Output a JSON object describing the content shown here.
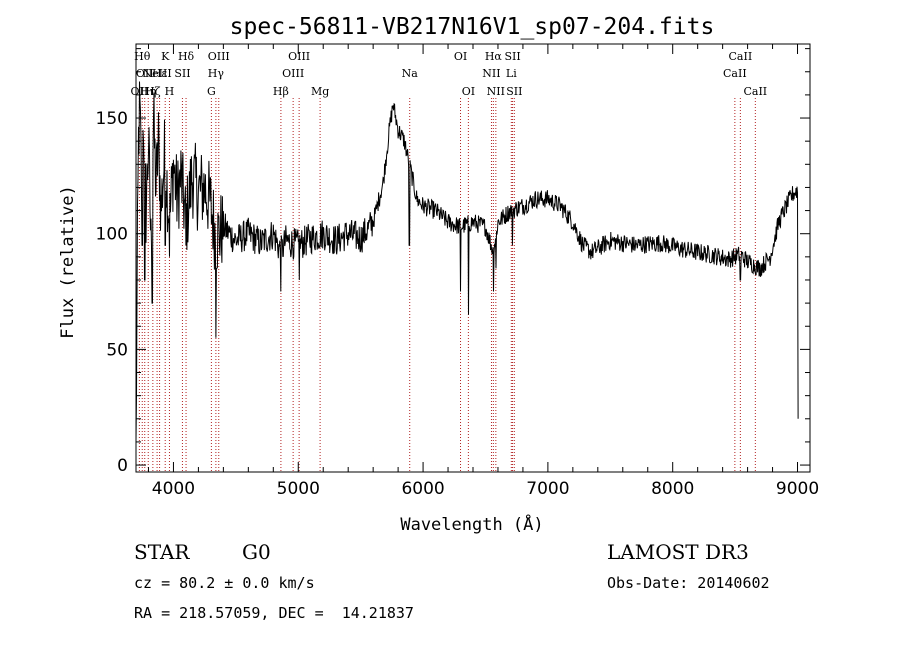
{
  "chart_data": {
    "type": "line",
    "title": "spec-56811-VB217N16V1_sp07-204.fits",
    "xlabel": "Wavelength (Å)",
    "ylabel": "Flux (relative)",
    "xlim": [
      3700,
      9100
    ],
    "ylim": [
      -3,
      182
    ],
    "xticks": [
      4000,
      5000,
      6000,
      7000,
      8000,
      9000
    ],
    "yticks": [
      0,
      50,
      100,
      150
    ],
    "anchors": [
      [
        3700,
        5
      ],
      [
        3705,
        45
      ],
      [
        3712,
        95
      ],
      [
        3720,
        140
      ],
      [
        3730,
        155
      ],
      [
        3745,
        120
      ],
      [
        3760,
        150
      ],
      [
        3780,
        110
      ],
      [
        3800,
        140
      ],
      [
        3820,
        95
      ],
      [
        3840,
        150
      ],
      [
        3860,
        120
      ],
      [
        3880,
        140
      ],
      [
        3900,
        110
      ],
      [
        3930,
        135
      ],
      [
        3970,
        105
      ],
      [
        4000,
        130
      ],
      [
        4030,
        115
      ],
      [
        4060,
        125
      ],
      [
        4101,
        105
      ],
      [
        4150,
        125
      ],
      [
        4200,
        118
      ],
      [
        4250,
        120
      ],
      [
        4300,
        112
      ],
      [
        4340,
        98
      ],
      [
        4400,
        103
      ],
      [
        4500,
        97
      ],
      [
        4600,
        100
      ],
      [
        4700,
        96
      ],
      [
        4800,
        100
      ],
      [
        4861,
        92
      ],
      [
        4900,
        97
      ],
      [
        5000,
        95
      ],
      [
        5100,
        98
      ],
      [
        5200,
        100
      ],
      [
        5300,
        97
      ],
      [
        5400,
        100
      ],
      [
        5500,
        98
      ],
      [
        5600,
        105
      ],
      [
        5680,
        122
      ],
      [
        5730,
        145
      ],
      [
        5760,
        156
      ],
      [
        5800,
        145
      ],
      [
        5850,
        140
      ],
      [
        5890,
        130
      ],
      [
        5950,
        115
      ],
      [
        6000,
        112
      ],
      [
        6100,
        110
      ],
      [
        6200,
        105
      ],
      [
        6300,
        103
      ],
      [
        6400,
        105
      ],
      [
        6500,
        103
      ],
      [
        6563,
        92
      ],
      [
        6600,
        105
      ],
      [
        6700,
        110
      ],
      [
        6800,
        112
      ],
      [
        6900,
        115
      ],
      [
        7000,
        115
      ],
      [
        7100,
        112
      ],
      [
        7200,
        105
      ],
      [
        7280,
        95
      ],
      [
        7350,
        92
      ],
      [
        7500,
        97
      ],
      [
        7700,
        95
      ],
      [
        7900,
        96
      ],
      [
        8100,
        93
      ],
      [
        8300,
        91
      ],
      [
        8450,
        89
      ],
      [
        8540,
        91
      ],
      [
        8600,
        88
      ],
      [
        8700,
        85
      ],
      [
        8780,
        90
      ],
      [
        8850,
        105
      ],
      [
        8920,
        113
      ],
      [
        8960,
        117
      ],
      [
        9000,
        119
      ]
    ],
    "absorption_dips": [
      [
        3750,
        95
      ],
      [
        3770,
        80
      ],
      [
        3830,
        70
      ],
      [
        3934,
        95
      ],
      [
        3968,
        90
      ],
      [
        4101,
        95
      ],
      [
        4340,
        55
      ],
      [
        4350,
        90
      ],
      [
        4861,
        75
      ],
      [
        5007,
        80
      ],
      [
        5890,
        95
      ],
      [
        6300,
        75
      ],
      [
        6365,
        65
      ],
      [
        6563,
        75
      ],
      [
        6583,
        85
      ],
      [
        6717,
        95
      ],
      [
        8542,
        80
      ],
      [
        8662,
        85
      ]
    ],
    "final_drop": [
      9005,
      20
    ],
    "spectral_lines": [
      {
        "wl": 3727,
        "label": "OII",
        "row": 3
      },
      {
        "wl": 3750,
        "label": "Hθ",
        "row": 1
      },
      {
        "wl": 3770,
        "label": "OII",
        "row": 2
      },
      {
        "wl": 3798,
        "label": "Hη",
        "row": 3
      },
      {
        "wl": 3835,
        "label": "Hζ",
        "row": 3
      },
      {
        "wl": 3869,
        "label": "NeIII",
        "row": 2
      },
      {
        "wl": 3889,
        "label": "Hε",
        "row": 2
      },
      {
        "wl": 3934,
        "label": "K",
        "row": 1
      },
      {
        "wl": 3968,
        "label": "H",
        "row": 3
      },
      {
        "wl": 4072,
        "label": "SII",
        "row": 2
      },
      {
        "wl": 4101,
        "label": "Hδ",
        "row": 1
      },
      {
        "wl": 4304,
        "label": "G",
        "row": 3
      },
      {
        "wl": 4340,
        "label": "Hγ",
        "row": 2
      },
      {
        "wl": 4363,
        "label": "OIII",
        "row": 1
      },
      {
        "wl": 4861,
        "label": "Hβ",
        "row": 3
      },
      {
        "wl": 4959,
        "label": "OIII",
        "row": 2
      },
      {
        "wl": 5007,
        "label": "OIII",
        "row": 1
      },
      {
        "wl": 5175,
        "label": "Mg",
        "row": 3
      },
      {
        "wl": 5893,
        "label": "Na",
        "row": 2
      },
      {
        "wl": 6300,
        "label": "OI",
        "row": 1
      },
      {
        "wl": 6363,
        "label": "OI",
        "row": 3
      },
      {
        "wl": 6548,
        "label": "NII",
        "row": 2
      },
      {
        "wl": 6563,
        "label": "Hα",
        "row": 1
      },
      {
        "wl": 6583,
        "label": "NII",
        "row": 3
      },
      {
        "wl": 6707,
        "label": "Li",
        "row": 2
      },
      {
        "wl": 6717,
        "label": "SII",
        "row": 1
      },
      {
        "wl": 6731,
        "label": "SII",
        "row": 3
      },
      {
        "wl": 8498,
        "label": "CaII",
        "row": 2
      },
      {
        "wl": 8542,
        "label": "CaII",
        "row": 1
      },
      {
        "wl": 8662,
        "label": "CaII",
        "row": 3
      }
    ]
  },
  "info": {
    "class": "STAR",
    "subclass": "G0",
    "survey": "LAMOST DR3",
    "cz": "cz = 80.2 ± 0.0 km/s",
    "obs_date": "Obs-Date: 20140602",
    "coords": "RA = 218.57059, DEC =  14.21837"
  },
  "colors": {
    "line_marker": "#b22222",
    "spectrum": "#000000"
  }
}
